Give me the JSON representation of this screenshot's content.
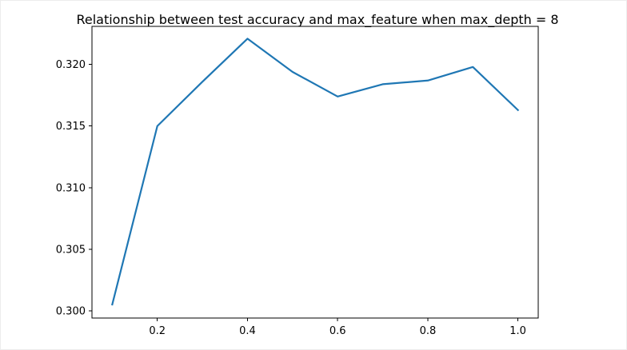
{
  "chart_data": {
    "type": "line",
    "title": "Relationship between test accuracy and max_feature when max_depth = 8",
    "xlabel": "",
    "ylabel": "",
    "xlim": [
      0.055,
      1.045
    ],
    "ylim": [
      0.2994,
      0.3231
    ],
    "xticks": [
      0.2,
      0.4,
      0.6,
      0.8,
      1.0
    ],
    "xtick_labels": [
      "0.2",
      "0.4",
      "0.6",
      "0.8",
      "1.0"
    ],
    "yticks": [
      0.3,
      0.305,
      0.31,
      0.315,
      0.32
    ],
    "ytick_labels": [
      "0.300",
      "0.305",
      "0.310",
      "0.315",
      "0.320"
    ],
    "grid": false,
    "series": [
      {
        "color": "#1f77b4",
        "x": [
          0.1,
          0.2,
          0.3,
          0.4,
          0.5,
          0.6,
          0.7,
          0.8,
          0.9,
          1.0
        ],
        "values": [
          0.3005,
          0.315,
          0.3186,
          0.3221,
          0.3194,
          0.3174,
          0.3184,
          0.3187,
          0.3198,
          0.3163
        ]
      }
    ]
  }
}
